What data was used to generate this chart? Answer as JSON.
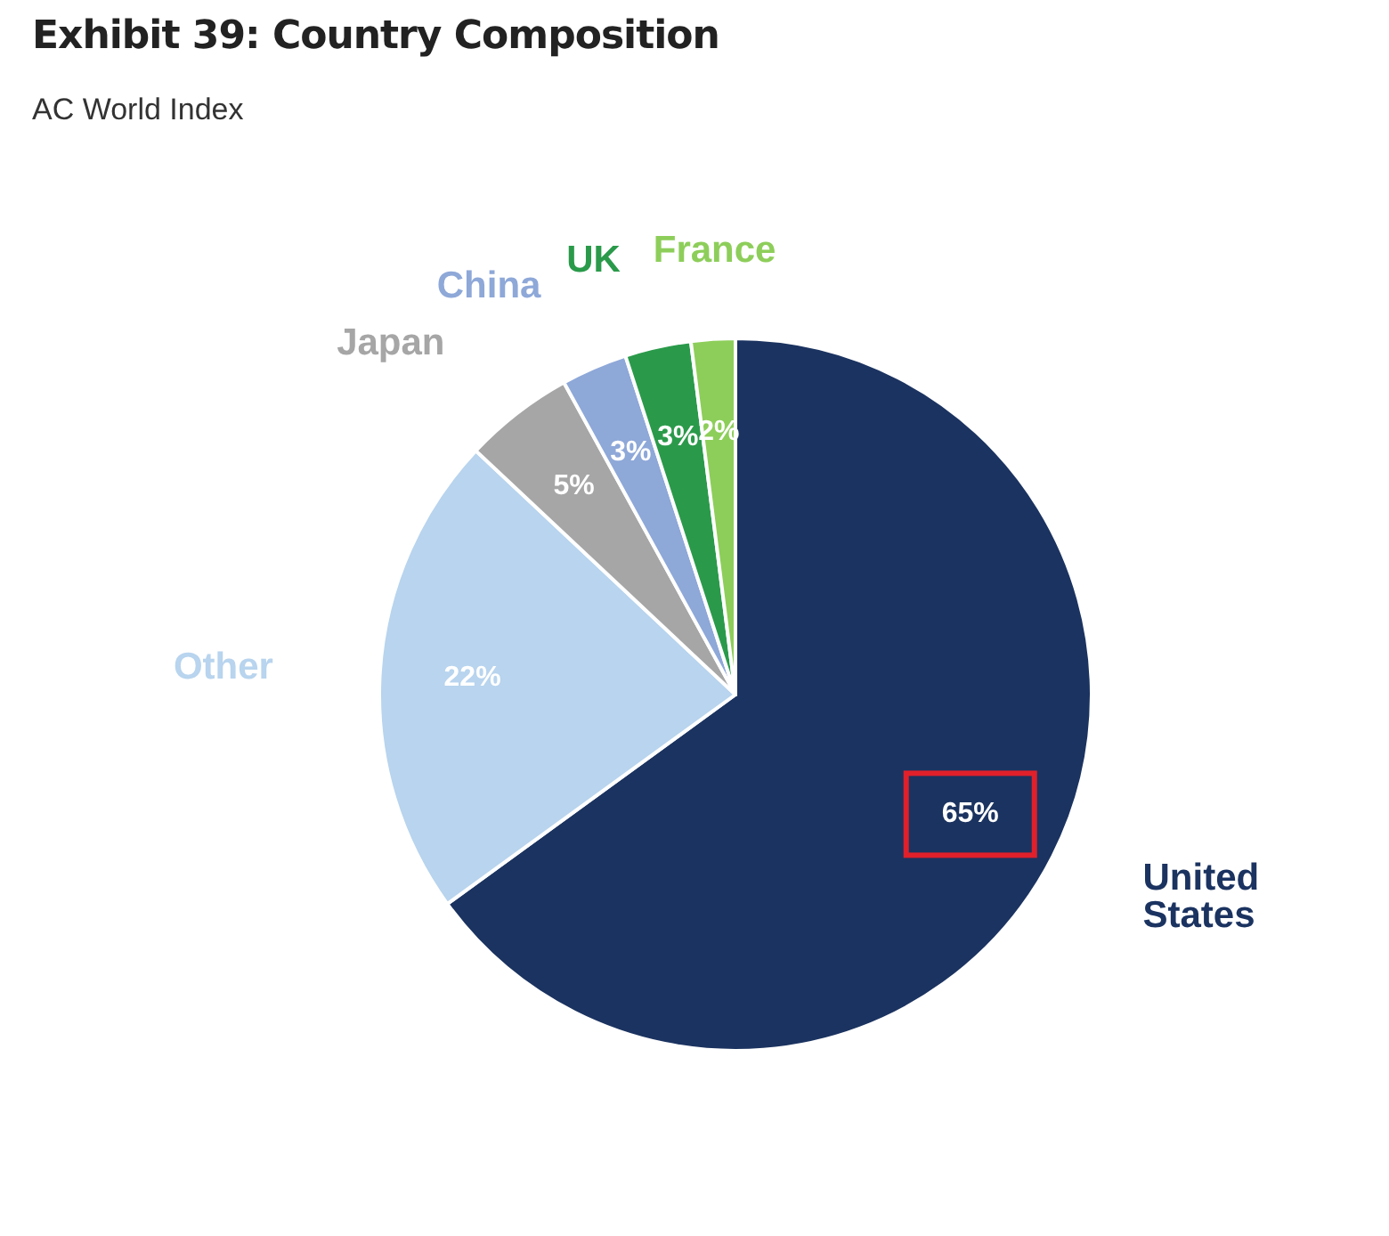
{
  "chart_data": {
    "type": "pie",
    "title": "Exhibit 39: Country Composition",
    "subtitle": "AC World Index",
    "categories": [
      "United States",
      "Other",
      "Japan",
      "China",
      "UK",
      "France"
    ],
    "values": [
      65,
      22,
      5,
      3,
      3,
      2
    ],
    "value_labels": [
      "65%",
      "22%",
      "5%",
      "3%",
      "3%",
      "2%"
    ],
    "colors": [
      "#1b3360",
      "#b8d4ee",
      "#a6a6a6",
      "#8ea8d8",
      "#2a9a4a",
      "#8dce5a"
    ],
    "legend": false
  }
}
